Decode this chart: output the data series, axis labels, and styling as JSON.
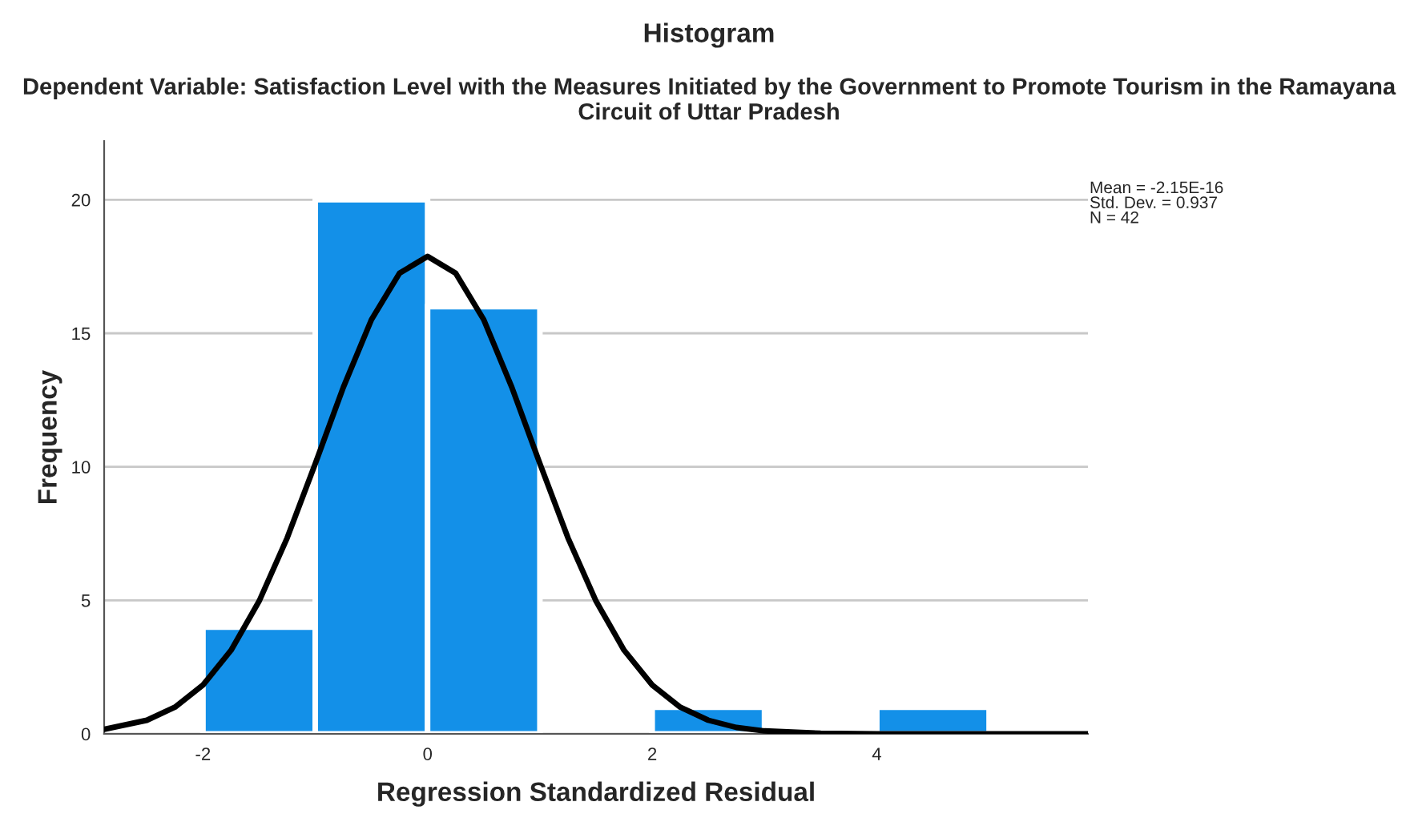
{
  "chart_data": {
    "type": "histogram",
    "title": "Histogram",
    "subtitle": "Dependent Variable: Satisfaction Level with the Measures Initiated by the Government to Promote Tourism in the Ramayana Circuit of Uttar Pradesh",
    "xlabel": "Regression Standardized Residual",
    "ylabel": "Frequency",
    "annotations": [
      "Mean = -2.15E-16\nStd. Dev. = 0.937\nN = 42"
    ],
    "series": [
      {
        "color": "#1390e8",
        "bins": [
          -2,
          -1,
          0,
          1,
          2,
          3,
          4,
          5
        ],
        "values": [
          4,
          20,
          16,
          0,
          1,
          0,
          1
        ]
      },
      {
        "type": "line",
        "color": "#000000",
        "x": [
          -2.88,
          -2.5,
          -2.25,
          -2,
          -1.75,
          -1.5,
          -1.25,
          -1,
          -0.75,
          -0.5,
          -0.25,
          0,
          0.25,
          0.5,
          0.75,
          1,
          1.25,
          1.5,
          1.75,
          2,
          2.25,
          2.5,
          2.75,
          3,
          3.5,
          4,
          5,
          5.88
        ],
        "values": [
          0.17,
          0.51,
          1.0,
          1.83,
          3.13,
          4.97,
          7.34,
          10.12,
          12.98,
          15.51,
          17.25,
          17.88,
          17.25,
          15.51,
          12.98,
          10.12,
          7.34,
          4.97,
          3.13,
          1.83,
          1.0,
          0.51,
          0.24,
          0.11,
          0.02,
          0,
          0,
          0
        ]
      }
    ],
    "xlim": [
      -2.88,
      5.88
    ],
    "ylim": [
      0,
      22.2
    ],
    "xticks": [
      {
        "value": -2,
        "label": "-2"
      },
      0,
      2,
      4
    ],
    "yticks": [
      0,
      5,
      10,
      15,
      20
    ],
    "grid": "y"
  }
}
